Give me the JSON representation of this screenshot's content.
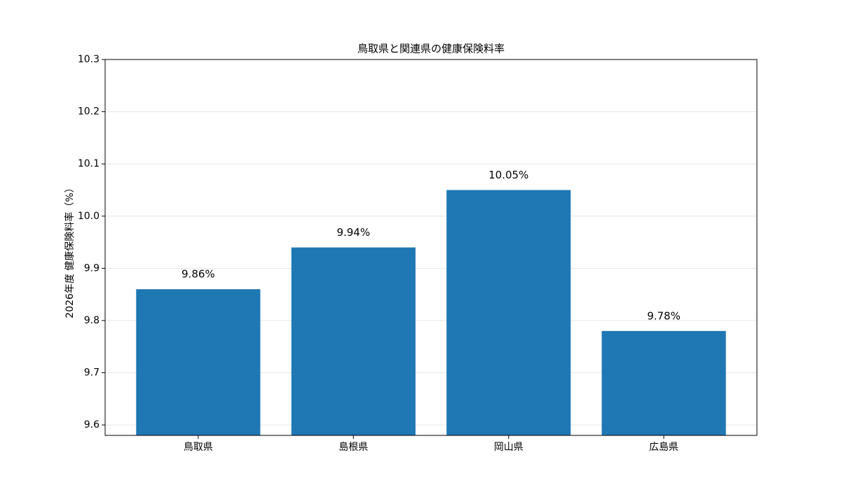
{
  "chart_data": {
    "type": "bar",
    "title": "鳥取県と関連県の健康保険料率",
    "y_label": "2026年度 健康保険料率（%）",
    "categories": [
      "鳥取県",
      "島根県",
      "岡山県",
      "広島県"
    ],
    "values": [
      9.86,
      9.94,
      10.05,
      9.78
    ],
    "value_labels": [
      "9.86%",
      "9.94%",
      "10.05%",
      "9.78%"
    ],
    "color": "#1f77b4",
    "ylim": [
      9.58,
      10.3
    ],
    "yticks": [
      9.6,
      9.7,
      9.8,
      9.9,
      {
        "value": 10,
        "label": "10.0"
      },
      10.1,
      10.2,
      10.3
    ],
    "grid": true
  }
}
